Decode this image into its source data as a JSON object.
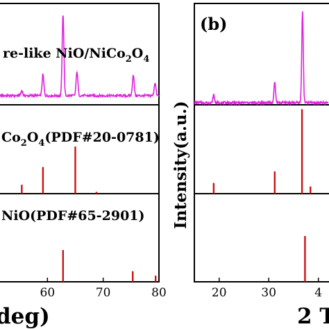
{
  "chart_data": [
    {
      "type": "line",
      "panel": "a",
      "xlabel_fragment": "deg)",
      "xlim": [
        50,
        80
      ],
      "xticks": [
        "60",
        "70",
        "80"
      ],
      "subplots": [
        {
          "label": "re-like NiO/NiCo2O4",
          "label_parts": [
            "re-like NiO/NiCo",
            "2",
            "O",
            "4"
          ],
          "series_color": "#e020e0",
          "baseline": 0.09,
          "peaks": [
            {
              "x": 55.4,
              "y": 0.14
            },
            {
              "x": 59.2,
              "y": 0.3
            },
            {
              "x": 62.8,
              "y": 0.9
            },
            {
              "x": 65.3,
              "y": 0.33
            },
            {
              "x": 75.4,
              "y": 0.3
            },
            {
              "x": 79.3,
              "y": 0.22
            }
          ]
        },
        {
          "label": "Co2O4(PDF#20-0781)",
          "label_parts": [
            "Co",
            "2",
            "O",
            "4",
            "(PDF#20-0781)"
          ],
          "series_color": "#cc1111",
          "sticks": [
            {
              "x": 55.4,
              "y": 0.1
            },
            {
              "x": 59.2,
              "y": 0.3
            },
            {
              "x": 65.0,
              "y": 0.53
            },
            {
              "x": 68.8,
              "y": 0.02
            }
          ]
        },
        {
          "label": "NiO(PDF#65-2901)",
          "label_parts": [
            "NiO(PDF#65-2901)"
          ],
          "series_color": "#cc1111",
          "sticks": [
            {
              "x": 62.8,
              "y": 0.36
            },
            {
              "x": 75.3,
              "y": 0.12
            },
            {
              "x": 79.4,
              "y": 0.07
            }
          ]
        }
      ]
    },
    {
      "type": "line",
      "panel": "b",
      "panel_label": "(b)",
      "ylabel": "Intensity(a.u.)",
      "xlabel_fragment": "2 T",
      "xlim": [
        15,
        42
      ],
      "xticks": [
        "20",
        "30",
        "4"
      ],
      "subplots": [
        {
          "series_color": "#e020e0",
          "baseline": 0.02,
          "peaks": [
            {
              "x": 18.9,
              "y": 0.1
            },
            {
              "x": 31.2,
              "y": 0.23
            },
            {
              "x": 36.8,
              "y": 0.92
            }
          ]
        },
        {
          "series_color": "#cc1111",
          "sticks": [
            {
              "x": 18.9,
              "y": 0.12
            },
            {
              "x": 31.2,
              "y": 0.25
            },
            {
              "x": 36.7,
              "y": 0.95
            },
            {
              "x": 38.4,
              "y": 0.08
            }
          ]
        },
        {
          "series_color": "#cc1111",
          "sticks": [
            {
              "x": 37.3,
              "y": 0.52
            }
          ]
        }
      ]
    }
  ]
}
